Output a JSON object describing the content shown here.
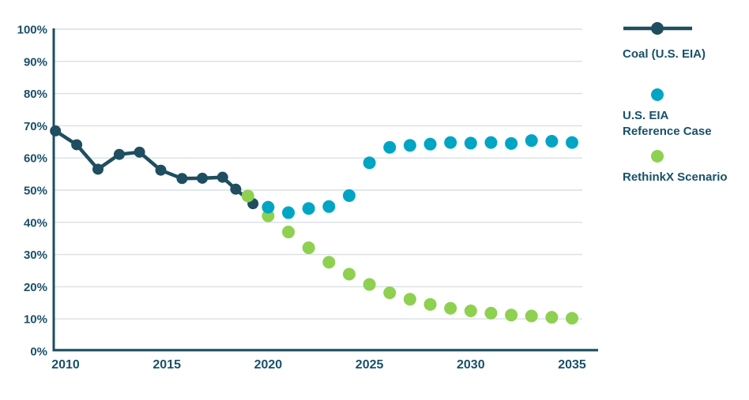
{
  "chart_data": {
    "type": "line",
    "description": "Capacity factor (%) by year, historical coal vs projections",
    "x_axis": {
      "tick_labels": [
        "2010",
        "2015",
        "2020",
        "2025",
        "2030",
        "2035"
      ],
      "tick_values": [
        2010,
        2015,
        2020,
        2025,
        2030,
        2035
      ],
      "range": [
        2009.4,
        2036.4
      ]
    },
    "y_axis": {
      "unit": "%",
      "tick_labels": [
        "0%",
        "10%",
        "20%",
        "30%",
        "40%",
        "50%",
        "60%",
        "70%",
        "80%",
        "90%",
        "100%"
      ],
      "tick_values": [
        0,
        10,
        20,
        30,
        40,
        50,
        60,
        70,
        80,
        90,
        100
      ],
      "range": [
        0,
        100
      ],
      "grid": true
    },
    "legend_position": "right",
    "series": [
      {
        "name": "Coal (U.S. EIA)",
        "style": "line-with-markers",
        "color": "#1e4e5f",
        "points": [
          [
            2009.5,
            68.4
          ],
          [
            2010.55,
            64.1
          ],
          [
            2011.6,
            56.5
          ],
          [
            2012.65,
            61.1
          ],
          [
            2013.65,
            61.8
          ],
          [
            2014.7,
            56.2
          ],
          [
            2015.75,
            53.6
          ],
          [
            2016.75,
            53.7
          ],
          [
            2017.75,
            54.0
          ],
          [
            2018.4,
            50.3
          ],
          [
            2019.25,
            45.8
          ]
        ]
      },
      {
        "name": "U.S. EIA Reference Case",
        "style": "scatter",
        "color": "#00a5c4",
        "points": [
          [
            2020,
            44.7
          ],
          [
            2021,
            43.0
          ],
          [
            2022,
            44.3
          ],
          [
            2023,
            44.9
          ],
          [
            2024,
            48.3
          ],
          [
            2025,
            58.5
          ],
          [
            2026,
            63.3
          ],
          [
            2027,
            63.9
          ],
          [
            2028,
            64.3
          ],
          [
            2029,
            64.8
          ],
          [
            2030,
            64.6
          ],
          [
            2031,
            64.8
          ],
          [
            2032,
            64.5
          ],
          [
            2033,
            65.4
          ],
          [
            2034,
            65.2
          ],
          [
            2035,
            64.8
          ]
        ]
      },
      {
        "name": "RethinkX Scenario",
        "style": "scatter",
        "color": "#8ed050",
        "points": [
          [
            2019,
            48.2
          ],
          [
            2020,
            42.0
          ],
          [
            2021,
            37.0
          ],
          [
            2022,
            32.1
          ],
          [
            2023,
            27.6
          ],
          [
            2024,
            23.9
          ],
          [
            2025,
            20.7
          ],
          [
            2026,
            18.1
          ],
          [
            2027,
            16.1
          ],
          [
            2028,
            14.5
          ],
          [
            2029,
            13.3
          ],
          [
            2030,
            12.5
          ],
          [
            2031,
            11.8
          ],
          [
            2032,
            11.2
          ],
          [
            2033,
            10.9
          ],
          [
            2034,
            10.5
          ],
          [
            2035,
            10.2
          ]
        ]
      }
    ]
  },
  "legend": {
    "items": [
      {
        "label": "Coal (U.S. EIA)",
        "symbol": "line-dot",
        "color": "#1e4e5f"
      },
      {
        "label": "U.S. EIA\nReference Case",
        "symbol": "dot",
        "color": "#00a5c4"
      },
      {
        "label": "RethinkX Scenario",
        "symbol": "dot",
        "color": "#8ed050"
      }
    ]
  },
  "colors": {
    "coal_line": "#1e4e5f",
    "eia_reference": "#00a5c4",
    "rethinkx": "#8ed050",
    "gridline": "#d9dfe4",
    "axis": "#1e4e5f",
    "label_text": "#19506a",
    "background": "#ffffff"
  }
}
